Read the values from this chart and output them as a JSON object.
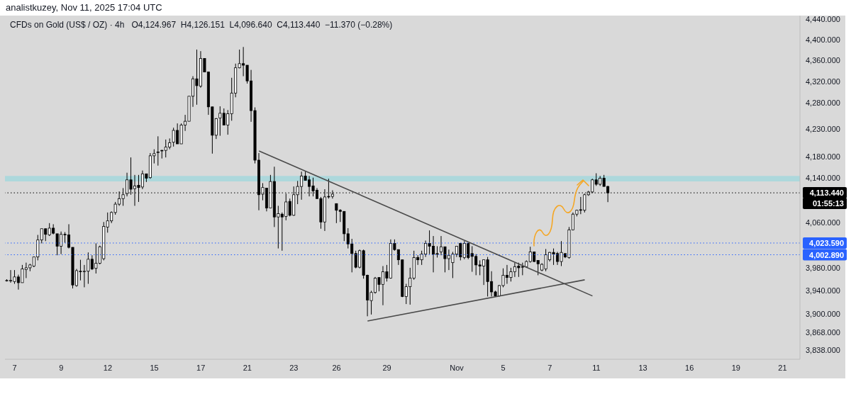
{
  "chart_data": {
    "type": "candlestick",
    "title": "CFDs on Gold (US$ / OZ) · 4h",
    "subtitle": "O4,124.967  H4,126.151  L4,096.640  C4,113.440  −11.370 (−0.28%)",
    "annotations": [
      "analistkuzey, Nov 11, 2025 17:04 UTC",
      "01:55:13"
    ],
    "categories": [
      null,
      null,
      "7",
      null,
      null,
      null,
      null,
      null,
      null,
      null,
      null,
      null,
      null,
      null,
      "9",
      null,
      null,
      null,
      null,
      null,
      null,
      null,
      null,
      null,
      null,
      null,
      "12",
      null,
      null,
      null,
      null,
      null,
      null,
      null,
      null,
      null,
      null,
      null,
      "15",
      null,
      null,
      null,
      null,
      null,
      null,
      null,
      null,
      null,
      null,
      null,
      "17",
      null,
      null,
      null,
      null,
      null,
      null,
      null,
      null,
      null,
      null,
      null,
      "21",
      null,
      null,
      null,
      null,
      null,
      null,
      null,
      null,
      null,
      null,
      null,
      "23",
      null,
      null,
      null,
      null,
      null,
      null,
      null,
      null,
      null,
      null,
      "26",
      null,
      null,
      null,
      null,
      null,
      null,
      null,
      null,
      null,
      null,
      null,
      null,
      "29",
      null,
      null,
      null,
      null,
      null,
      null,
      null,
      null,
      null,
      null,
      null,
      null,
      null,
      null,
      null,
      null,
      null,
      "Nov",
      null,
      null,
      null,
      null,
      null,
      null,
      null,
      null,
      null,
      null,
      null,
      "5",
      null,
      null,
      null,
      null,
      null,
      null,
      null,
      null,
      null,
      null,
      null,
      "7",
      null,
      null,
      null,
      null,
      null,
      null,
      null,
      null,
      null,
      null,
      null,
      "11",
      null,
      null,
      null,
      null,
      null,
      null,
      null,
      null,
      null,
      null,
      null,
      "13",
      null,
      null,
      null,
      null,
      null,
      null,
      null,
      null,
      null,
      null,
      null,
      "16",
      null,
      null,
      null,
      null,
      null,
      null,
      null,
      null,
      null,
      null,
      null,
      "19",
      null,
      null,
      null,
      null,
      null,
      null,
      null,
      null,
      null,
      null,
      null,
      "21",
      null,
      null,
      null,
      null
    ],
    "ohlc": [
      [
        3958,
        3960,
        3956,
        3958
      ],
      [
        3958,
        3976,
        3954,
        3958
      ],
      [
        3956,
        3976,
        3952,
        3964
      ],
      [
        3964,
        3968,
        3942,
        3954
      ],
      [
        3954,
        3985,
        3954,
        3978
      ],
      [
        3977,
        3989,
        3962,
        3980
      ],
      [
        3980,
        3987,
        3974,
        3985
      ],
      [
        3983,
        3999,
        3981,
        3999
      ],
      [
        3999,
        4038,
        3993,
        4029
      ],
      [
        4029,
        4049,
        4023,
        4049
      ],
      [
        4049,
        4049,
        4027,
        4039
      ],
      [
        4038,
        4059,
        4036,
        4050
      ],
      [
        4050,
        4057,
        4039,
        4041
      ],
      [
        4040,
        4040,
        4002,
        4018
      ],
      [
        4018,
        4044,
        4004,
        4039
      ],
      [
        4039,
        4043,
        4024,
        4038
      ],
      [
        4038,
        4057,
        4014,
        4016
      ],
      [
        4016,
        4016,
        3944,
        3950
      ],
      [
        3949,
        3978,
        3947,
        3975
      ],
      [
        3974,
        3994,
        3958,
        3973
      ],
      [
        3973,
        3985,
        3946,
        3974
      ],
      [
        3974,
        4007,
        3952,
        3995
      ],
      [
        3995,
        4002,
        3976,
        3978
      ],
      [
        3979,
        4023,
        3970,
        3988
      ],
      [
        3988,
        4019,
        3986,
        4017
      ],
      [
        3996,
        4061,
        3993,
        4053
      ],
      [
        4052,
        4078,
        4042,
        4063
      ],
      [
        4063,
        4080,
        4059,
        4078
      ],
      [
        4078,
        4097,
        4074,
        4093
      ],
      [
        4093,
        4116,
        4090,
        4103
      ],
      [
        4103,
        4122,
        4090,
        4110
      ],
      [
        4112,
        4150,
        4107,
        4137
      ],
      [
        4137,
        4178,
        4110,
        4120
      ],
      [
        4121,
        4146,
        4090,
        4126
      ],
      [
        4127,
        4146,
        4097,
        4123
      ],
      [
        4124,
        4154,
        4120,
        4148
      ],
      [
        4148,
        4148,
        4133,
        4140
      ],
      [
        4141,
        4186,
        4139,
        4181
      ],
      [
        4181,
        4193,
        4167,
        4185
      ],
      [
        4188,
        4217,
        4163,
        4188
      ],
      [
        4190,
        4192,
        4176,
        4191
      ],
      [
        4191,
        4211,
        4178,
        4197
      ],
      [
        4197,
        4213,
        4193,
        4205
      ],
      [
        4206,
        4233,
        4198,
        4228
      ],
      [
        4228,
        4241,
        4203,
        4203
      ],
      [
        4203,
        4241,
        4203,
        4238
      ],
      [
        4238,
        4257,
        4227,
        4245
      ],
      [
        4245,
        4292,
        4245,
        4292
      ],
      [
        4292,
        4330,
        4272,
        4325
      ],
      [
        4325,
        4381,
        4276,
        4312
      ],
      [
        4311,
        4378,
        4308,
        4364
      ],
      [
        4364,
        4364,
        4338,
        4338
      ],
      [
        4338,
        4338,
        4257,
        4272
      ],
      [
        4272,
        4272,
        4185,
        4219
      ],
      [
        4219,
        4251,
        4212,
        4250
      ],
      [
        4251,
        4273,
        4218,
        4260
      ],
      [
        4260,
        4269,
        4238,
        4238
      ],
      [
        4238,
        4266,
        4220,
        4259
      ],
      [
        4259,
        4327,
        4246,
        4298
      ],
      [
        4298,
        4354,
        4290,
        4346
      ],
      [
        4346,
        4381,
        4345,
        4354
      ],
      [
        4354,
        4386,
        4330,
        4351
      ],
      [
        4351,
        4351,
        4316,
        4321
      ],
      [
        4321,
        4342,
        4244,
        4265
      ],
      [
        4265,
        4271,
        4167,
        4173
      ],
      [
        4173,
        4186,
        4082,
        4110
      ],
      [
        4111,
        4131,
        4100,
        4123
      ],
      [
        4122,
        4122,
        4080,
        4086
      ],
      [
        4086,
        4146,
        4086,
        4134
      ],
      [
        4134,
        4161,
        4052,
        4070
      ],
      [
        4070,
        4090,
        4014,
        4076
      ],
      [
        4075,
        4078,
        4010,
        4070
      ],
      [
        4071,
        4112,
        4064,
        4097
      ],
      [
        4098,
        4103,
        4071,
        4073
      ],
      [
        4073,
        4125,
        4072,
        4110
      ],
      [
        4110,
        4135,
        4093,
        4125
      ],
      [
        4125,
        4152,
        4101,
        4144
      ],
      [
        4144,
        4152,
        4136,
        4136
      ],
      [
        4137,
        4144,
        4107,
        4125
      ],
      [
        4126,
        4141,
        4107,
        4117
      ],
      [
        4118,
        4122,
        4103,
        4103
      ],
      [
        4103,
        4106,
        4049,
        4061
      ],
      [
        4061,
        4120,
        4045,
        4106
      ],
      [
        4106,
        4139,
        4103,
        4107
      ],
      [
        4107,
        4118,
        4103,
        4111
      ],
      [
        4094,
        4094,
        4059,
        4082
      ],
      [
        4082,
        4084,
        4061,
        4080
      ],
      [
        4080,
        4080,
        4027,
        4040
      ],
      [
        4040,
        4050,
        4014,
        4022
      ],
      [
        4022,
        4031,
        3972,
        4005
      ],
      [
        4005,
        4010,
        3979,
        3981
      ],
      [
        3981,
        4012,
        3979,
        4010
      ],
      [
        4010,
        4012,
        3961,
        3967
      ],
      [
        3967,
        3968,
        3896,
        3924
      ],
      [
        3923,
        3940,
        3899,
        3937
      ],
      [
        3937,
        3964,
        3935,
        3962
      ],
      [
        3963,
        3963,
        3939,
        3951
      ],
      [
        3951,
        3983,
        3915,
        3973
      ],
      [
        3973,
        3985,
        3956,
        3962
      ],
      [
        3962,
        4030,
        3961,
        4023
      ],
      [
        4023,
        4030,
        4010,
        4012
      ],
      [
        4012,
        4012,
        3985,
        3994
      ],
      [
        3994,
        3994,
        3929,
        3930
      ],
      [
        3930,
        3952,
        3917,
        3947
      ],
      [
        3947,
        3980,
        3916,
        3962
      ],
      [
        3962,
        4010,
        3959,
        3998
      ],
      [
        3998,
        4002,
        3985,
        3994
      ],
      [
        3994,
        4010,
        3985,
        4004
      ],
      [
        4004,
        4028,
        3999,
        4023
      ],
      [
        4023,
        4046,
        4004,
        4018
      ],
      [
        4018,
        4036,
        3972,
        4004
      ],
      [
        4004,
        4018,
        3998,
        4005
      ],
      [
        4008,
        4036,
        4002,
        4017
      ],
      [
        4017,
        4017,
        3972,
        3996
      ],
      [
        3996,
        4012,
        3976,
        4002
      ],
      [
        3989,
        4008,
        3962,
        4004
      ],
      [
        4004,
        4018,
        3999,
        4018
      ],
      [
        4023,
        4024,
        3993,
        3999
      ],
      [
        3998,
        4027,
        3995,
        4023
      ],
      [
        4023,
        4024,
        3995,
        3998
      ],
      [
        4005,
        4018,
        3973,
        4000
      ],
      [
        4000,
        4004,
        3967,
        3985
      ],
      [
        3985,
        3993,
        3967,
        3983
      ],
      [
        3983,
        3994,
        3950,
        3994
      ],
      [
        3994,
        3999,
        3930,
        3956
      ],
      [
        3956,
        3974,
        3930,
        3938
      ],
      [
        3938,
        3940,
        3930,
        3931
      ],
      [
        3931,
        3950,
        3930,
        3949
      ],
      [
        3949,
        3979,
        3946,
        3967
      ],
      [
        3967,
        3985,
        3952,
        3963
      ],
      [
        3963,
        3980,
        3956,
        3973
      ],
      [
        3973,
        3989,
        3964,
        3982
      ],
      [
        3983,
        3989,
        3964,
        3980
      ],
      [
        3982,
        3989,
        3967,
        3982
      ],
      [
        3982,
        3993,
        3980,
        3991
      ],
      [
        3991,
        4017,
        3989,
        4008
      ],
      [
        4008,
        4008,
        3990,
        3991
      ],
      [
        3993,
        3993,
        3967,
        3987
      ],
      [
        3976,
        3988,
        3974,
        3986
      ],
      [
        3978,
        4013,
        3974,
        4003
      ],
      [
        3994,
        4008,
        3991,
        4007
      ],
      [
        4007,
        4014,
        3985,
        4004
      ],
      [
        4005,
        4008,
        3985,
        3991
      ],
      [
        3991,
        4027,
        3983,
        4007
      ],
      [
        4005,
        4005,
        3997,
        3999
      ],
      [
        3998,
        4052,
        3996,
        4047
      ],
      [
        4047,
        4078,
        4046,
        4075
      ],
      [
        4075,
        4083,
        4071,
        4082
      ],
      [
        4082,
        4106,
        4075,
        4083
      ],
      [
        4082,
        4112,
        4078,
        4110
      ],
      [
        4110,
        4117,
        4108,
        4115
      ],
      [
        4115,
        4139,
        4113,
        4137
      ],
      [
        4137,
        4149,
        4126,
        4129
      ],
      [
        4129,
        4144,
        4126,
        4140
      ],
      [
        4140,
        4146,
        4125,
        4125
      ],
      [
        4124.967,
        4126.151,
        4096.64,
        4113.44
      ],
      null,
      null,
      null,
      null,
      null,
      null,
      null,
      null,
      null,
      null,
      null,
      null,
      null,
      null,
      null,
      null,
      null,
      null,
      null,
      null,
      null,
      null,
      null,
      null,
      null,
      null,
      null,
      null,
      null,
      null,
      null,
      null,
      null,
      null,
      null,
      null,
      null,
      null,
      null,
      null,
      null,
      null,
      null,
      null,
      null,
      null,
      null,
      null,
      null
    ],
    "series": [
      {
        "type": "line",
        "color": "#4a4a4a",
        "values": [
          null,
          null,
          null,
          null,
          null,
          null,
          null,
          null,
          null,
          null,
          null,
          null,
          null,
          null,
          null,
          null,
          null,
          null,
          null,
          null,
          null,
          null,
          null,
          null,
          null,
          null,
          null,
          null,
          null,
          null,
          null,
          null,
          null,
          null,
          null,
          null,
          null,
          null,
          null,
          null,
          null,
          null,
          null,
          null,
          null,
          null,
          null,
          null,
          null,
          null,
          null,
          null,
          null,
          null,
          null,
          null,
          null,
          null,
          null,
          null,
          null,
          null,
          null,
          null,
          null,
          4190,
          null,
          null,
          null,
          null,
          null,
          null,
          null,
          null,
          null,
          null,
          null,
          null,
          null,
          null,
          null,
          null,
          null,
          null,
          null,
          null,
          null,
          null,
          null,
          null,
          null,
          null,
          null,
          null,
          null,
          null,
          null,
          null,
          null,
          null,
          null,
          null,
          null,
          null,
          null,
          null,
          null,
          null,
          null,
          null,
          null,
          null,
          null,
          null,
          null,
          null,
          null,
          null,
          null,
          null,
          null,
          null,
          null,
          null,
          null,
          null,
          null,
          null,
          null,
          null,
          null,
          null,
          null,
          null,
          null,
          null,
          null,
          null,
          null,
          null,
          null,
          null,
          null,
          null,
          null,
          null,
          null,
          null,
          null,
          null,
          null,
          3931,
          null,
          null,
          null,
          null,
          null,
          null,
          null,
          null,
          null,
          null,
          null,
          null,
          null,
          null,
          null,
          null,
          null,
          null,
          null,
          null,
          null,
          null,
          null,
          null,
          null,
          null,
          null,
          null,
          null,
          null,
          null,
          null,
          null,
          null,
          null,
          null,
          null,
          null,
          null,
          null,
          null,
          null,
          null,
          null,
          null,
          null,
          null,
          null,
          null,
          null,
          null,
          null,
          null
        ]
      },
      {
        "type": "line",
        "color": "#4a4a4a",
        "values": [
          null,
          null,
          null,
          null,
          null,
          null,
          null,
          null,
          null,
          null,
          null,
          null,
          null,
          null,
          null,
          null,
          null,
          null,
          null,
          null,
          null,
          null,
          null,
          null,
          null,
          null,
          null,
          null,
          null,
          null,
          null,
          null,
          null,
          null,
          null,
          null,
          null,
          null,
          null,
          null,
          null,
          null,
          null,
          null,
          null,
          null,
          null,
          null,
          null,
          null,
          null,
          null,
          null,
          null,
          null,
          null,
          null,
          null,
          null,
          null,
          null,
          null,
          null,
          null,
          null,
          null,
          null,
          null,
          null,
          null,
          null,
          null,
          null,
          null,
          null,
          null,
          null,
          null,
          null,
          null,
          null,
          null,
          null,
          null,
          null,
          null,
          null,
          null,
          null,
          null,
          null,
          null,
          null,
          3888,
          null,
          null,
          null,
          null,
          null,
          null,
          null,
          null,
          null,
          null,
          null,
          null,
          null,
          null,
          null,
          null,
          null,
          null,
          null,
          null,
          null,
          null,
          null,
          null,
          null,
          null,
          null,
          null,
          null,
          null,
          null,
          null,
          null,
          null,
          null,
          null,
          null,
          null,
          null,
          null,
          null,
          null,
          null,
          null,
          null,
          null,
          null,
          null,
          null,
          null,
          null,
          null,
          null,
          null,
          null,
          3959,
          null,
          null,
          null,
          null,
          null,
          null,
          null,
          null,
          null,
          null,
          null,
          null,
          null,
          null,
          null,
          null,
          null,
          null,
          null,
          null,
          null,
          null,
          null,
          null,
          null,
          null,
          null,
          null,
          null,
          null,
          null,
          null,
          null,
          null,
          null,
          null,
          null,
          null,
          null,
          null,
          null,
          null,
          null,
          null,
          null,
          null,
          null,
          null,
          null,
          null,
          null,
          null,
          null,
          null,
          null
        ]
      }
    ],
    "log": true,
    "ylim": [
      3823,
      4447
    ],
    "yticks": [
      {
        "value": 3838,
        "label": "3,838.000"
      },
      {
        "value": 3868,
        "label": "3,868.000"
      },
      {
        "value": 3900,
        "label": "3,900.000"
      },
      {
        "value": 3940,
        "label": "3,940.000"
      },
      {
        "value": 3980,
        "label": "3,980.000"
      },
      {
        "value": 4060,
        "label": "4,060.000"
      },
      {
        "value": 4140,
        "label": "4,140.000"
      },
      {
        "value": 4180,
        "label": "4,180.000"
      },
      {
        "value": 4230,
        "label": "4,230.000"
      },
      {
        "value": 4280,
        "label": "4,280.000"
      },
      {
        "value": 4320,
        "label": "4,320.000"
      },
      {
        "value": 4360,
        "label": "4,360.000"
      },
      {
        "value": 4400,
        "label": "4,400.000"
      },
      {
        "value": 4440,
        "label": "4,440.000"
      }
    ],
    "ref_lines": [
      {
        "axis": "y",
        "value": 4113.44,
        "label": "4,113.440",
        "color": "#000000",
        "line_style": "dotted"
      },
      {
        "axis": "y",
        "value": 4023.59,
        "label": "4,023.590",
        "color": "#2962ff",
        "line_style": "dotted"
      },
      {
        "axis": "y",
        "value": 4002.89,
        "label": "4,002.890",
        "color": "#2962ff",
        "line_style": "dotted"
      }
    ],
    "bands": [
      {
        "axis": "y",
        "from": 4134,
        "to": 4144,
        "color": "#add8dc"
      }
    ]
  }
}
